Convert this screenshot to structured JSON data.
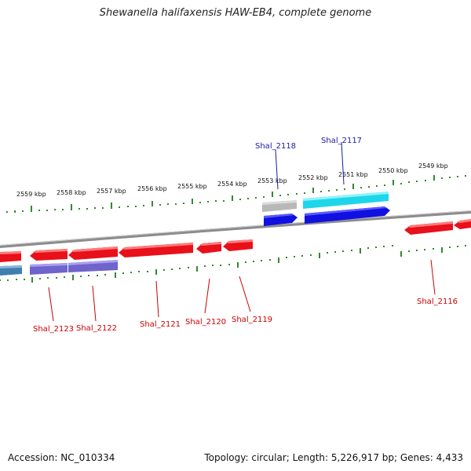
{
  "title": "Shewanella halifaxensis HAW-EB4, complete genome",
  "footer": {
    "accession": "Accession: NC_010334",
    "summary": "Topology: circular; Length: 5,226,917 bp; Genes: 4,433"
  },
  "colors": {
    "backbone": "#8c8c8c",
    "tick_green": "#2e8b2e",
    "gene_red": "#e8101a",
    "gene_blue": "#1010e0",
    "gene_cyan": "#20e0f0",
    "gene_gray": "#b0b0b0",
    "gene_lavender": "#7a6fd0",
    "gene_steel": "#4682b4",
    "label_red": "#cc0000",
    "label_blue": "#1a1aa8"
  },
  "kbp_labels": [
    "2559 kbp",
    "2558 kbp",
    "2557 kbp",
    "2556 kbp",
    "2555 kbp",
    "2554 kbp",
    "2553 kbp",
    "2552 kbp",
    "2551 kbp",
    "2550 kbp",
    "2549 kbp"
  ],
  "gene_labels": {
    "shal_2118": "Shal_2118",
    "shal_2117": "Shal_2117",
    "shal_2116": "Shal_2116",
    "shal_2119": "Shal_2119",
    "shal_2120": "Shal_2120",
    "shal_2121": "Shal_2121",
    "shal_2122": "Shal_2122",
    "shal_2123": "Shal_2123"
  }
}
